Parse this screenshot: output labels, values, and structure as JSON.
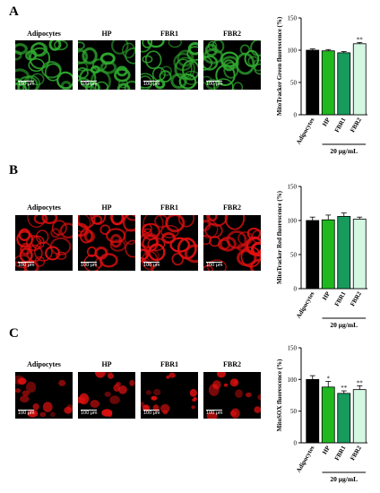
{
  "panels": [
    {
      "letter": "A",
      "image_labels": [
        "Adipocytes",
        "HP",
        "FBR1",
        "FBR2"
      ],
      "scale_bar": "100 μm",
      "stain_color": "#2fa82f"
    },
    {
      "letter": "B",
      "image_labels": [
        "Adipocytes",
        "HP",
        "FBR1",
        "FBR2"
      ],
      "scale_bar": "100 μm",
      "stain_color": "#e01010"
    },
    {
      "letter": "C",
      "image_labels": [
        "Adipocytes",
        "HP",
        "FBR1",
        "FBR2"
      ],
      "scale_bar": "100 μm",
      "stain_color": "#e01010"
    }
  ],
  "chart_data": [
    {
      "type": "bar",
      "categories": [
        "Adipocytes",
        "HP",
        "FBR1",
        "FBR2"
      ],
      "values": [
        100,
        99,
        96,
        110
      ],
      "errors": [
        2,
        2,
        2,
        2
      ],
      "significance": [
        "",
        "",
        "",
        "**"
      ],
      "colors": [
        "#000000",
        "#1fb91f",
        "#179a5c",
        "#d3f7e0"
      ],
      "ylabel": "MitoTracker Green fluorescence (%)",
      "ylim": [
        0,
        150
      ],
      "yticks": [
        0,
        50,
        100,
        150
      ],
      "group_label": "20 μg/mL"
    },
    {
      "type": "bar",
      "categories": [
        "Adipocytes",
        "HP",
        "FBR1",
        "FBR2"
      ],
      "values": [
        100,
        101,
        106,
        102
      ],
      "errors": [
        5,
        7,
        5,
        3
      ],
      "significance": [
        "",
        "",
        "",
        ""
      ],
      "colors": [
        "#000000",
        "#1fb91f",
        "#179a5c",
        "#d3f7e0"
      ],
      "ylabel": "MitoTracker Red fluorescence (%)",
      "ylim": [
        0,
        150
      ],
      "yticks": [
        0,
        50,
        100,
        150
      ],
      "group_label": "20 μg/mL"
    },
    {
      "type": "bar",
      "categories": [
        "Adipocytes",
        "HP",
        "FBR1",
        "FBR2"
      ],
      "values": [
        100,
        88,
        78,
        84
      ],
      "errors": [
        6,
        9,
        4,
        6
      ],
      "significance": [
        "",
        "*",
        "**",
        "**"
      ],
      "colors": [
        "#000000",
        "#1fb91f",
        "#179a5c",
        "#d3f7e0"
      ],
      "ylabel": "MitoSOX fluorescence (%)",
      "ylim": [
        0,
        150
      ],
      "yticks": [
        0,
        50,
        100,
        150
      ],
      "group_label": "20 μg/mL"
    }
  ]
}
